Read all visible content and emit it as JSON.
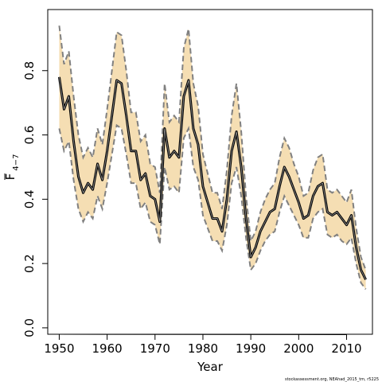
{
  "chart_data": {
    "type": "line",
    "xlabel": "Year",
    "ylabel_main": "F",
    "ylabel_sub": "4−7",
    "credit": "stockassessment.org, NEAhad_2015_tm, r5225",
    "xlim": [
      1947.6,
      2015.4
    ],
    "ylim": [
      -0.02,
      0.99
    ],
    "xticks": [
      1950,
      1960,
      1970,
      1980,
      1990,
      2000,
      2010
    ],
    "yticks": [
      0.0,
      0.2,
      0.4,
      0.6,
      0.8
    ],
    "ytick_labels": [
      "0.0",
      "0.2",
      "0.4",
      "0.6",
      "0.8"
    ],
    "colors": {
      "band": "#f5deb3",
      "bound": "#808080",
      "estimate": "#000000"
    },
    "x": [
      1950,
      1951,
      1952,
      1953,
      1954,
      1955,
      1956,
      1957,
      1958,
      1959,
      1960,
      1961,
      1962,
      1963,
      1964,
      1965,
      1966,
      1967,
      1968,
      1969,
      1970,
      1971,
      1972,
      1973,
      1974,
      1975,
      1976,
      1977,
      1978,
      1979,
      1980,
      1981,
      1982,
      1983,
      1984,
      1985,
      1986,
      1987,
      1988,
      1989,
      1990,
      1991,
      1992,
      1993,
      1994,
      1995,
      1996,
      1997,
      1998,
      1999,
      2000,
      2001,
      2002,
      2003,
      2004,
      2005,
      2006,
      2007,
      2008,
      2009,
      2010,
      2011,
      2012,
      2013,
      2014
    ],
    "series": [
      {
        "role": "estimate",
        "values": [
          0.78,
          0.68,
          0.72,
          0.58,
          0.47,
          0.42,
          0.45,
          0.43,
          0.51,
          0.46,
          0.55,
          0.66,
          0.77,
          0.76,
          0.66,
          0.55,
          0.55,
          0.46,
          0.48,
          0.41,
          0.4,
          0.33,
          0.62,
          0.53,
          0.55,
          0.53,
          0.72,
          0.77,
          0.62,
          0.57,
          0.44,
          0.39,
          0.34,
          0.34,
          0.3,
          0.4,
          0.55,
          0.61,
          0.5,
          0.34,
          0.22,
          0.25,
          0.3,
          0.33,
          0.36,
          0.37,
          0.44,
          0.5,
          0.47,
          0.43,
          0.39,
          0.34,
          0.35,
          0.41,
          0.44,
          0.45,
          0.36,
          0.35,
          0.36,
          0.34,
          0.32,
          0.35,
          0.25,
          0.18,
          0.15
        ]
      },
      {
        "role": "upper",
        "values": [
          0.94,
          0.82,
          0.86,
          0.72,
          0.6,
          0.53,
          0.56,
          0.53,
          0.62,
          0.57,
          0.68,
          0.8,
          0.92,
          0.91,
          0.8,
          0.67,
          0.67,
          0.58,
          0.6,
          0.51,
          0.5,
          0.42,
          0.76,
          0.64,
          0.66,
          0.64,
          0.87,
          0.93,
          0.76,
          0.69,
          0.54,
          0.48,
          0.42,
          0.42,
          0.37,
          0.49,
          0.66,
          0.76,
          0.61,
          0.41,
          0.27,
          0.3,
          0.36,
          0.4,
          0.43,
          0.45,
          0.53,
          0.59,
          0.56,
          0.51,
          0.47,
          0.41,
          0.42,
          0.49,
          0.53,
          0.54,
          0.43,
          0.42,
          0.43,
          0.41,
          0.39,
          0.43,
          0.31,
          0.22,
          0.18
        ]
      },
      {
        "role": "lower",
        "values": [
          0.62,
          0.55,
          0.58,
          0.46,
          0.37,
          0.33,
          0.36,
          0.34,
          0.41,
          0.37,
          0.45,
          0.54,
          0.63,
          0.62,
          0.54,
          0.45,
          0.45,
          0.37,
          0.39,
          0.33,
          0.32,
          0.26,
          0.5,
          0.43,
          0.44,
          0.42,
          0.59,
          0.62,
          0.5,
          0.46,
          0.35,
          0.31,
          0.27,
          0.27,
          0.24,
          0.32,
          0.45,
          0.5,
          0.41,
          0.28,
          0.18,
          0.2,
          0.24,
          0.27,
          0.29,
          0.3,
          0.36,
          0.41,
          0.38,
          0.35,
          0.32,
          0.28,
          0.28,
          0.34,
          0.36,
          0.37,
          0.29,
          0.28,
          0.29,
          0.27,
          0.26,
          0.28,
          0.2,
          0.14,
          0.12
        ]
      }
    ]
  }
}
